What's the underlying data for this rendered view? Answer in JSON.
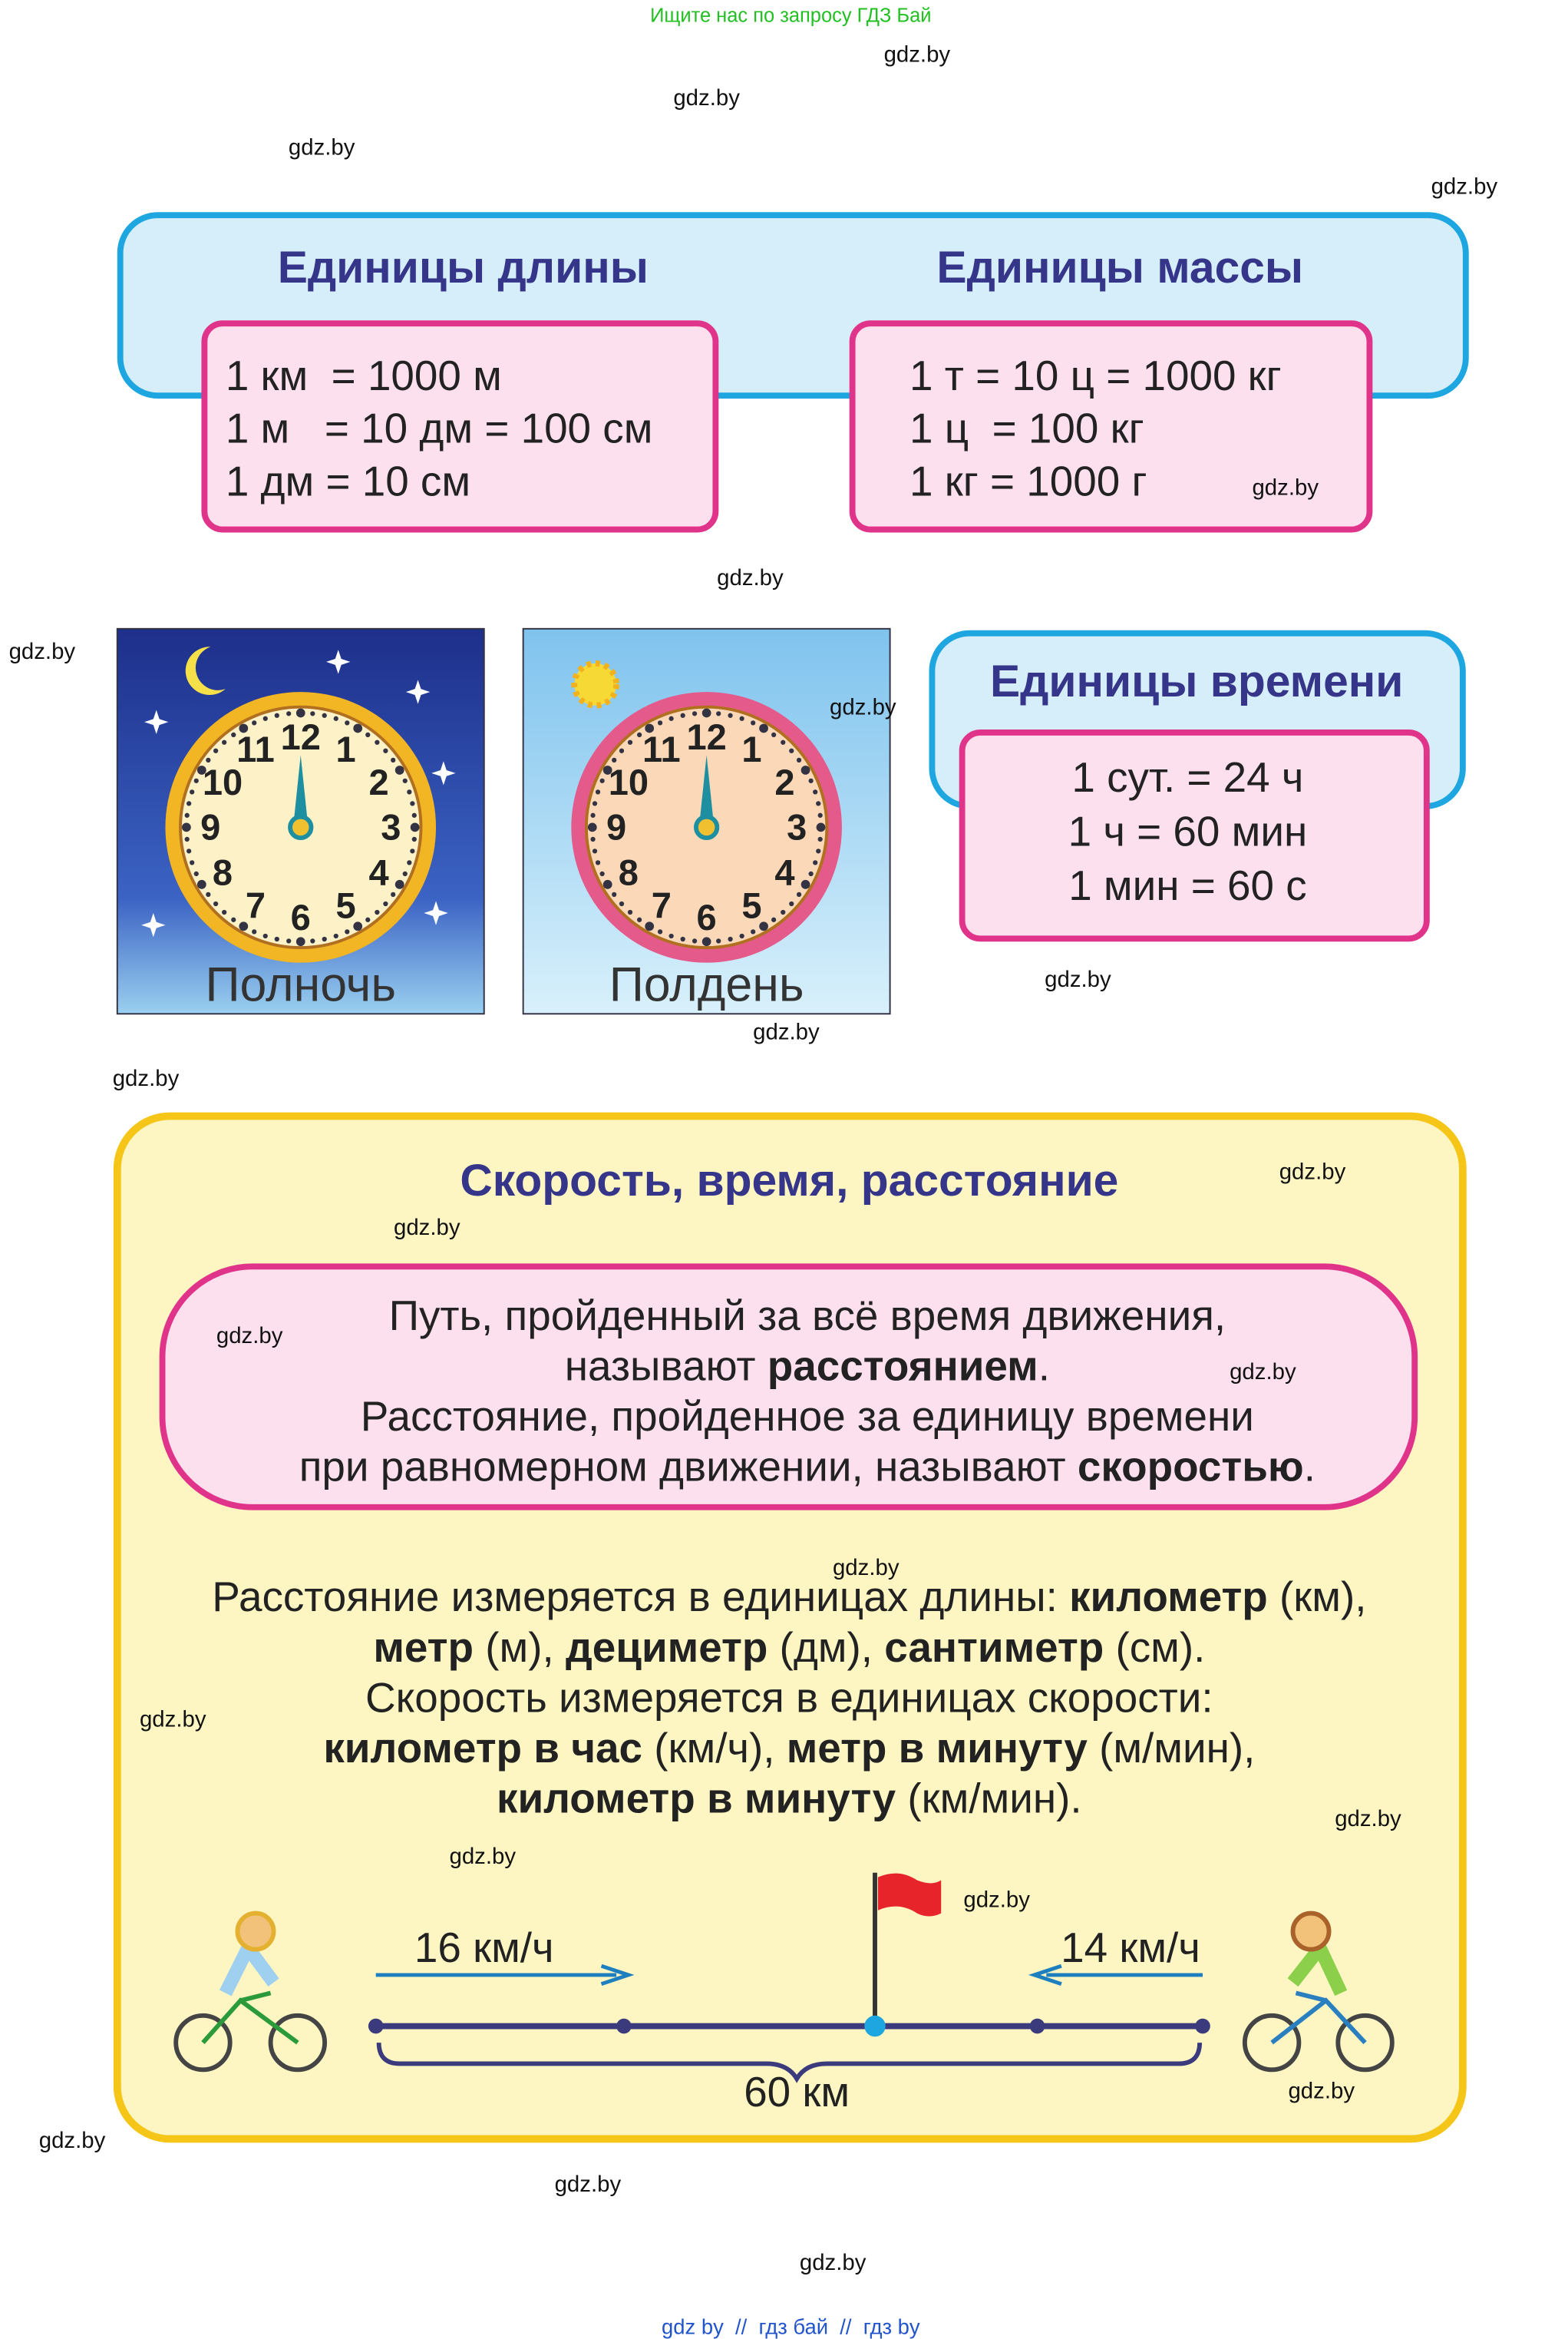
{
  "header": {
    "search_note": "Ищите нас по запросу ГДЗ Бай"
  },
  "watermarks": [
    "gdz.by",
    "gdz.by",
    "gdz.by",
    "gdz.by",
    "gdz.by",
    "gdz.by",
    "gdz.by",
    "gdz.by",
    "gdz.by",
    "gdz.by",
    "gdz.by",
    "gdz.by",
    "gdz.by",
    "gdz.by",
    "gdz.by",
    "gdz.by",
    "gdz.by",
    "gdz.by",
    "gdz.by",
    "gdz.by",
    "gdz.by",
    "gdz.by",
    "gdz.by",
    "gdz.by"
  ],
  "length_units": {
    "title": "Единицы длины",
    "lines": [
      "1 км  = 1000 м",
      "1 м   = 10 дм = 100 см",
      "1 дм = 10 см"
    ]
  },
  "mass_units": {
    "title": "Единицы массы",
    "lines": [
      "1 т = 10 ц = 1000 кг",
      "1 ц  = 100 кг",
      "1 кг = 1000 г"
    ]
  },
  "clocks": {
    "numbers": [
      12,
      1,
      2,
      3,
      4,
      5,
      6,
      7,
      8,
      9,
      10,
      11
    ],
    "midnight": "Полночь",
    "noon": "Полдень"
  },
  "time_units": {
    "title": "Единицы времени",
    "lines": [
      "1 сут. = 24 ч",
      "1 ч = 60 мин",
      "1 мин = 60 с"
    ]
  },
  "speed_section": {
    "title": "Скорость, время, расстояние",
    "definition": [
      [
        {
          "text": "Путь, пройденный за всё время движения,"
        }
      ],
      [
        {
          "text": "называют "
        },
        {
          "text": "расстоянием",
          "bold": true
        },
        {
          "text": "."
        }
      ],
      [
        {
          "text": "Расстояние, пройденное за единицу времени"
        }
      ],
      [
        {
          "text": "при равномерном движении, называют "
        },
        {
          "text": "скоростью",
          "bold": true
        },
        {
          "text": "."
        }
      ]
    ],
    "measurement": [
      [
        {
          "text": "Расстояние измеряется в единицах длины: "
        },
        {
          "text": "километр",
          "bold": true
        },
        {
          "text": " (км),"
        }
      ],
      [
        {
          "text": "метр",
          "bold": true
        },
        {
          "text": " (м), "
        },
        {
          "text": "дециметр",
          "bold": true
        },
        {
          "text": " (дм), "
        },
        {
          "text": "сантиметр",
          "bold": true
        },
        {
          "text": " (см)."
        }
      ],
      [
        {
          "text": "Скорость измеряется в единицах скорости:"
        }
      ],
      [
        {
          "text": "километр в час",
          "bold": true
        },
        {
          "text": " (км/ч), "
        },
        {
          "text": "метр в минуту",
          "bold": true
        },
        {
          "text": " (м/мин),"
        }
      ],
      [
        {
          "text": "километр в минуту",
          "bold": true
        },
        {
          "text": " (км/мин)."
        }
      ]
    ],
    "diagram": {
      "left_speed": "16 км/ч",
      "right_speed": "14 км/ч",
      "distance": "60 км"
    }
  },
  "footer": {
    "links": "gdz by  //  гдз бай  //  гдз by"
  }
}
